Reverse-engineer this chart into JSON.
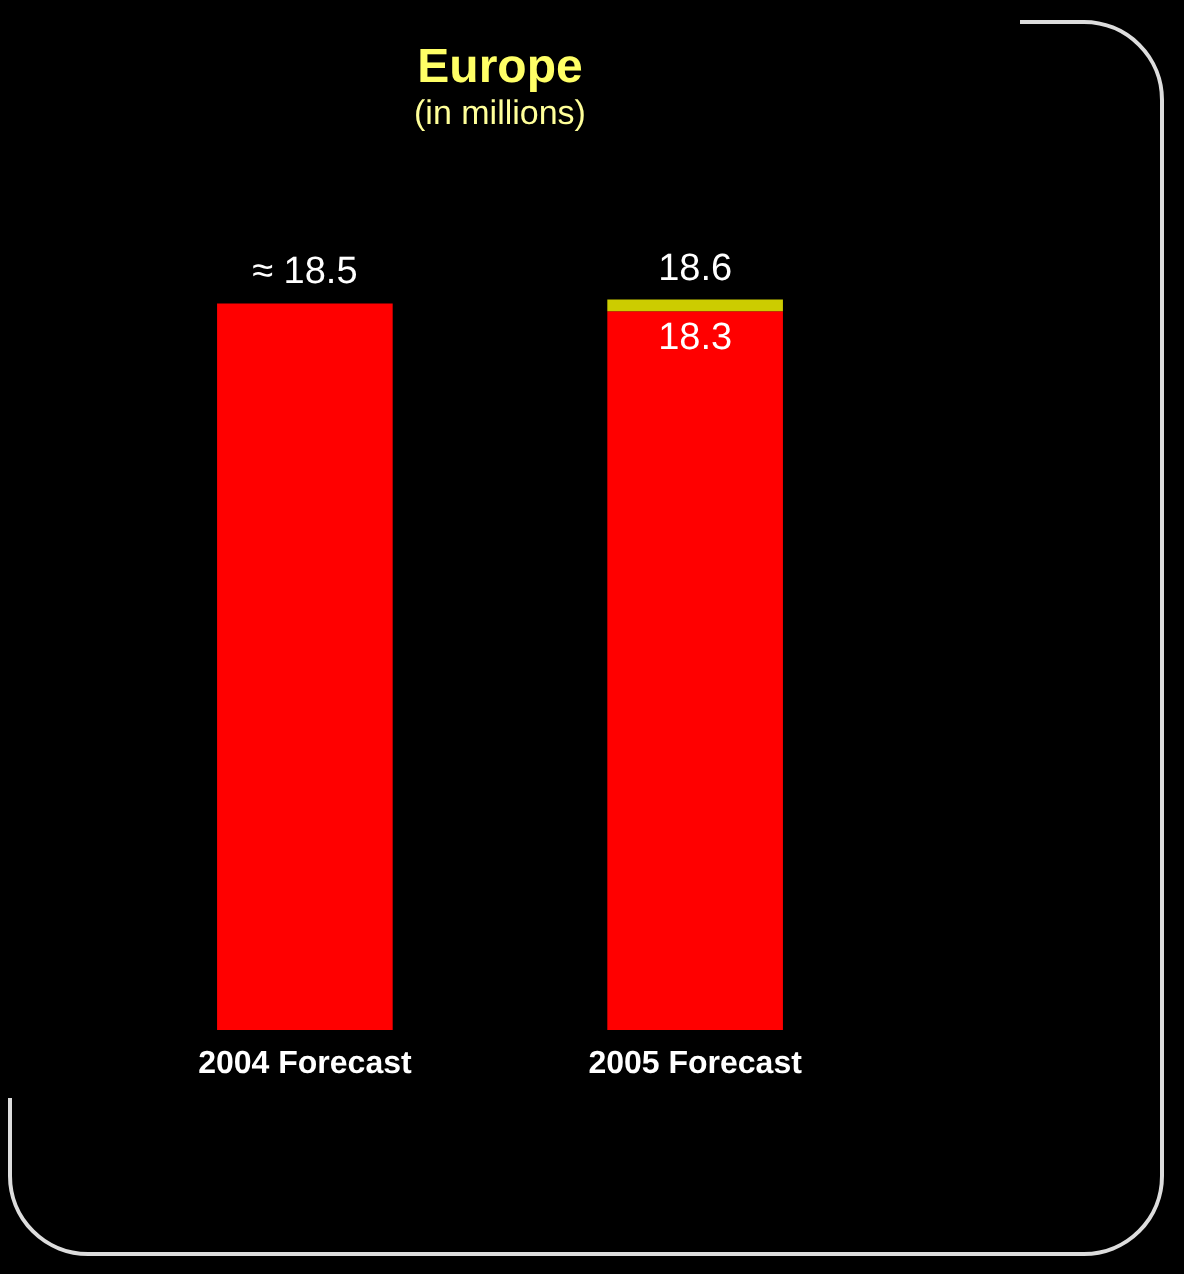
{
  "chart_data": {
    "type": "bar",
    "title": "Europe",
    "subtitle": "(in millions)",
    "categories": [
      "2004 Forecast",
      "2005 Forecast"
    ],
    "stacked": true,
    "series": [
      {
        "color": "#ff0000",
        "values": [
          18.5,
          18.3
        ],
        "value_labels": [
          "≈ 18.5",
          "18.3"
        ]
      },
      {
        "color": "#cccc00",
        "values": [
          null,
          0.3
        ]
      }
    ],
    "totals": [
      null,
      "18.6"
    ],
    "tick_labels": "x"
  }
}
